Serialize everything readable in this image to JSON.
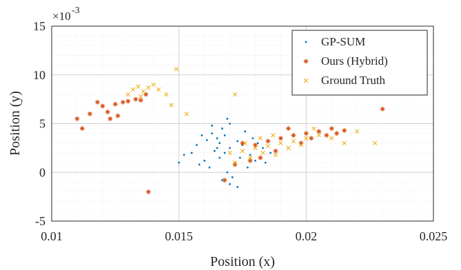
{
  "chart_data": {
    "type": "scatter",
    "title": "",
    "xlabel": "Position (x)",
    "ylabel": "Position (y)",
    "xlim": [
      0.01,
      0.025
    ],
    "ylim": [
      -0.005,
      0.015
    ],
    "x_ticks": [
      0.01,
      0.015,
      0.02,
      0.025
    ],
    "x_tick_labels": [
      "0.01",
      "0.015",
      "0.02",
      "0.025"
    ],
    "y_ticks": [
      -0.005,
      0,
      0.005,
      0.01,
      0.015
    ],
    "y_tick_labels": [
      "-5",
      "0",
      "5",
      "10",
      "15"
    ],
    "y_exponent_label": "×10",
    "y_exponent_power": "-3",
    "grid": true,
    "minor_grid": true,
    "legend_position": "top-right",
    "series": [
      {
        "name": "GP-SUM",
        "marker": "dot",
        "color": "#0072BD",
        "points": [
          [
            0.0165,
            0.0035
          ],
          [
            0.0168,
            0.002
          ],
          [
            0.017,
            0.0025
          ],
          [
            0.0172,
            0.001
          ],
          [
            0.0166,
            0.0015
          ],
          [
            0.016,
            0.0012
          ],
          [
            0.0158,
            0.0008
          ],
          [
            0.0175,
            0.0028
          ],
          [
            0.0178,
            0.0018
          ],
          [
            0.0163,
            0.004
          ],
          [
            0.0167,
            0.0045
          ],
          [
            0.017,
            0.005
          ],
          [
            0.0162,
            0.0005
          ],
          [
            0.0169,
            0.0
          ],
          [
            0.0171,
            -0.0005
          ],
          [
            0.0173,
            0.0032
          ],
          [
            0.0155,
            0.002
          ],
          [
            0.0152,
            0.0018
          ],
          [
            0.015,
            0.001
          ],
          [
            0.0174,
            0.0015
          ],
          [
            0.0177,
            0.0005
          ],
          [
            0.018,
            0.0012
          ],
          [
            0.0164,
            0.0022
          ],
          [
            0.0166,
            0.003
          ],
          [
            0.0168,
            0.0038
          ],
          [
            0.0176,
            0.0042
          ],
          [
            0.0179,
            0.0035
          ],
          [
            0.0157,
            0.0028
          ],
          [
            0.0161,
            0.0033
          ],
          [
            0.0183,
            0.0025
          ],
          [
            0.0186,
            0.002
          ],
          [
            0.0184,
            0.001
          ],
          [
            0.017,
            -0.0012
          ],
          [
            0.0167,
            -0.0008
          ],
          [
            0.0173,
            -0.0015
          ],
          [
            0.0181,
            0.003
          ],
          [
            0.0159,
            0.0038
          ],
          [
            0.0163,
            0.0048
          ],
          [
            0.0169,
            0.0055
          ],
          [
            0.0165,
            0.0025
          ]
        ]
      },
      {
        "name": "Ours (Hybrid)",
        "marker": "asterisk",
        "color": "#D95319",
        "points": [
          [
            0.011,
            0.0055
          ],
          [
            0.0112,
            0.0045
          ],
          [
            0.0118,
            0.0072
          ],
          [
            0.012,
            0.0068
          ],
          [
            0.0122,
            0.0062
          ],
          [
            0.0125,
            0.007
          ],
          [
            0.0128,
            0.0072
          ],
          [
            0.013,
            0.0073
          ],
          [
            0.0133,
            0.0075
          ],
          [
            0.0135,
            0.0074
          ],
          [
            0.0137,
            0.008
          ],
          [
            0.0123,
            0.0055
          ],
          [
            0.0126,
            0.0058
          ],
          [
            0.0115,
            0.006
          ],
          [
            0.0138,
            -0.002
          ],
          [
            0.0175,
            0.003
          ],
          [
            0.018,
            0.0028
          ],
          [
            0.0185,
            0.0032
          ],
          [
            0.019,
            0.0035
          ],
          [
            0.0195,
            0.0038
          ],
          [
            0.02,
            0.004
          ],
          [
            0.0205,
            0.0042
          ],
          [
            0.021,
            0.0045
          ],
          [
            0.0212,
            0.004
          ],
          [
            0.0215,
            0.0043
          ],
          [
            0.0198,
            0.003
          ],
          [
            0.0202,
            0.0035
          ],
          [
            0.0208,
            0.0038
          ],
          [
            0.023,
            0.0065
          ],
          [
            0.0182,
            0.0015
          ],
          [
            0.0188,
            0.0022
          ],
          [
            0.0178,
            0.0012
          ],
          [
            0.0172,
            0.0008
          ],
          [
            0.0168,
            -0.0008
          ],
          [
            0.0193,
            0.0045
          ]
        ]
      },
      {
        "name": "Ground Truth",
        "marker": "cross",
        "color": "#EDB120",
        "points": [
          [
            0.013,
            0.008
          ],
          [
            0.0132,
            0.0085
          ],
          [
            0.0134,
            0.0088
          ],
          [
            0.0136,
            0.0083
          ],
          [
            0.0138,
            0.0087
          ],
          [
            0.014,
            0.009
          ],
          [
            0.0142,
            0.0085
          ],
          [
            0.0135,
            0.0078
          ],
          [
            0.0145,
            0.008
          ],
          [
            0.0149,
            0.0106
          ],
          [
            0.0147,
            0.0069
          ],
          [
            0.0153,
            0.006
          ],
          [
            0.0172,
            0.008
          ],
          [
            0.017,
            0.002
          ],
          [
            0.0175,
            0.0022
          ],
          [
            0.018,
            0.0025
          ],
          [
            0.0185,
            0.0027
          ],
          [
            0.019,
            0.003
          ],
          [
            0.0195,
            0.0032
          ],
          [
            0.02,
            0.0035
          ],
          [
            0.0178,
            0.0015
          ],
          [
            0.0183,
            0.002
          ],
          [
            0.0188,
            0.0018
          ],
          [
            0.0193,
            0.0025
          ],
          [
            0.0198,
            0.0028
          ],
          [
            0.0172,
            0.001
          ],
          [
            0.0176,
            0.003
          ],
          [
            0.0182,
            0.0035
          ],
          [
            0.0205,
            0.0038
          ],
          [
            0.021,
            0.0035
          ],
          [
            0.0215,
            0.003
          ],
          [
            0.0227,
            0.003
          ],
          [
            0.022,
            0.0042
          ],
          [
            0.0203,
            0.0045
          ],
          [
            0.0187,
            0.0038
          ]
        ]
      }
    ]
  }
}
